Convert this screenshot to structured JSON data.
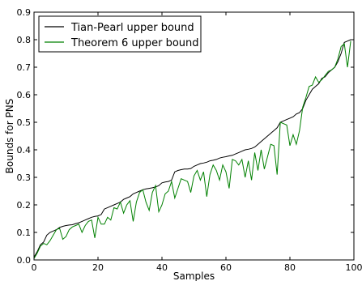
{
  "chart_data": {
    "type": "line",
    "xlabel": "Samples",
    "ylabel": "Bounds for PNS",
    "xlim": [
      0,
      100
    ],
    "ylim": [
      0,
      0.9
    ],
    "xticks": [
      0,
      20,
      40,
      60,
      80,
      100
    ],
    "yticks": [
      0.0,
      0.1,
      0.2,
      0.3,
      0.4,
      0.5,
      0.6,
      0.7,
      0.8,
      0.9
    ],
    "legend_position": "upper-left",
    "grid": false,
    "x": [
      0,
      1,
      2,
      3,
      4,
      5,
      6,
      7,
      8,
      9,
      10,
      11,
      12,
      13,
      14,
      15,
      16,
      17,
      18,
      19,
      20,
      21,
      22,
      23,
      24,
      25,
      26,
      27,
      28,
      29,
      30,
      31,
      32,
      33,
      34,
      35,
      36,
      37,
      38,
      39,
      40,
      41,
      42,
      43,
      44,
      45,
      46,
      47,
      48,
      49,
      50,
      51,
      52,
      53,
      54,
      55,
      56,
      57,
      58,
      59,
      60,
      61,
      62,
      63,
      64,
      65,
      66,
      67,
      68,
      69,
      70,
      71,
      72,
      73,
      74,
      75,
      76,
      77,
      78,
      79,
      80,
      81,
      82,
      83,
      84,
      85,
      86,
      87,
      88,
      89,
      90,
      91,
      92,
      93,
      94,
      95,
      96,
      97,
      98,
      99
    ],
    "series": [
      {
        "name": "Tian-Pearl upper bound",
        "color": "#000000",
        "values": [
          0.01,
          0.03,
          0.055,
          0.065,
          0.09,
          0.1,
          0.105,
          0.11,
          0.118,
          0.122,
          0.125,
          0.127,
          0.128,
          0.132,
          0.135,
          0.14,
          0.145,
          0.15,
          0.155,
          0.158,
          0.16,
          0.165,
          0.185,
          0.19,
          0.195,
          0.2,
          0.205,
          0.21,
          0.22,
          0.225,
          0.23,
          0.24,
          0.245,
          0.25,
          0.255,
          0.258,
          0.26,
          0.262,
          0.265,
          0.27,
          0.28,
          0.283,
          0.285,
          0.29,
          0.32,
          0.325,
          0.328,
          0.33,
          0.33,
          0.332,
          0.34,
          0.345,
          0.35,
          0.352,
          0.355,
          0.36,
          0.362,
          0.365,
          0.37,
          0.373,
          0.375,
          0.378,
          0.38,
          0.385,
          0.39,
          0.395,
          0.4,
          0.402,
          0.405,
          0.41,
          0.42,
          0.43,
          0.44,
          0.45,
          0.46,
          0.47,
          0.48,
          0.5,
          0.505,
          0.51,
          0.515,
          0.52,
          0.53,
          0.535,
          0.55,
          0.58,
          0.6,
          0.62,
          0.63,
          0.64,
          0.66,
          0.665,
          0.68,
          0.69,
          0.7,
          0.72,
          0.75,
          0.79,
          0.795,
          0.8
        ]
      },
      {
        "name": "Theorem 6 upper bound",
        "color": "#008000",
        "values": [
          0.005,
          0.025,
          0.05,
          0.06,
          0.055,
          0.07,
          0.09,
          0.11,
          0.115,
          0.075,
          0.085,
          0.11,
          0.12,
          0.125,
          0.13,
          0.1,
          0.125,
          0.14,
          0.145,
          0.08,
          0.155,
          0.13,
          0.13,
          0.155,
          0.145,
          0.19,
          0.185,
          0.21,
          0.17,
          0.2,
          0.215,
          0.14,
          0.21,
          0.245,
          0.255,
          0.21,
          0.18,
          0.245,
          0.27,
          0.175,
          0.2,
          0.24,
          0.25,
          0.285,
          0.225,
          0.26,
          0.295,
          0.29,
          0.285,
          0.245,
          0.305,
          0.325,
          0.29,
          0.32,
          0.23,
          0.31,
          0.345,
          0.325,
          0.29,
          0.345,
          0.32,
          0.26,
          0.365,
          0.36,
          0.345,
          0.365,
          0.3,
          0.36,
          0.29,
          0.39,
          0.325,
          0.4,
          0.33,
          0.375,
          0.42,
          0.415,
          0.31,
          0.5,
          0.495,
          0.49,
          0.415,
          0.455,
          0.42,
          0.47,
          0.555,
          0.59,
          0.63,
          0.635,
          0.665,
          0.645,
          0.655,
          0.67,
          0.685,
          0.69,
          0.7,
          0.73,
          0.775,
          0.785,
          0.7,
          0.795
        ]
      }
    ]
  }
}
